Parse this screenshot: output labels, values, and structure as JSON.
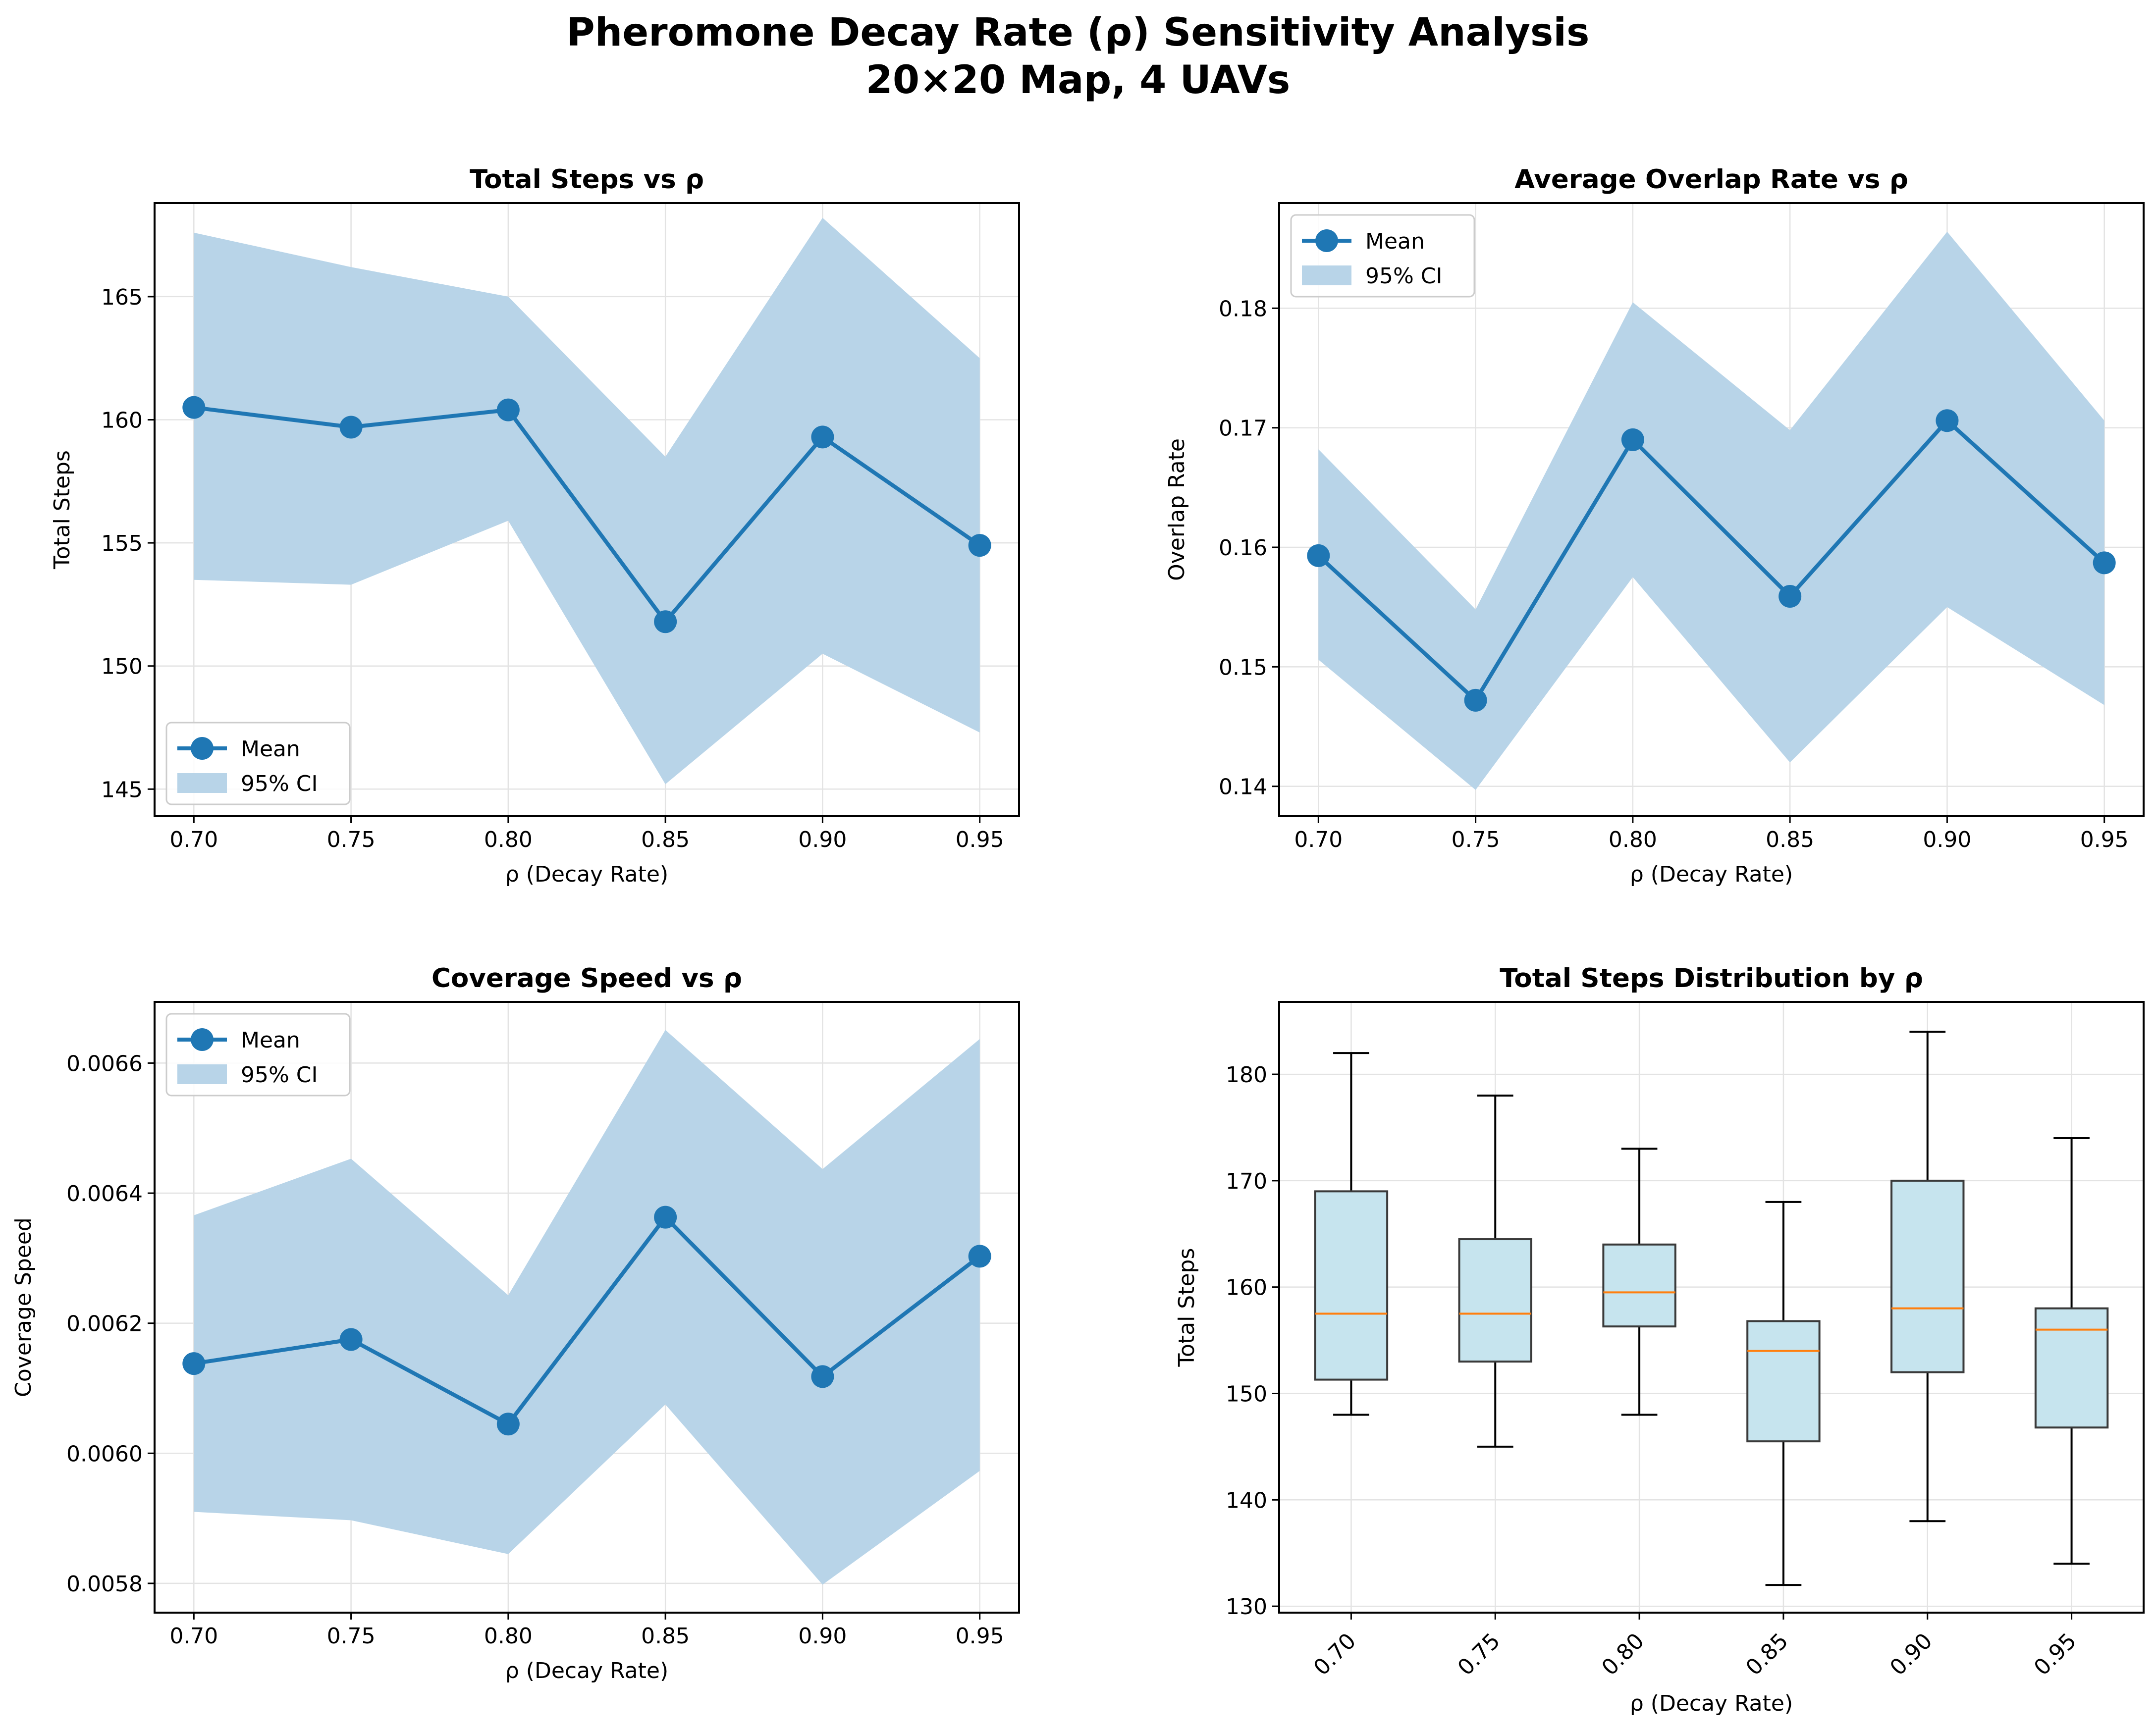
{
  "figure": {
    "title_line1": "Pheromone Decay Rate (ρ) Sensitivity Analysis",
    "title_line2": "20×20 Map, 4 UAVs"
  },
  "colors": {
    "line": "#1f77b4",
    "band": "#b8d4e8",
    "box_fill": "#c6e4ee",
    "median": "#ff7f0e",
    "grid": "#e3e3e3"
  },
  "legend": {
    "mean": "Mean",
    "ci": "95% CI"
  },
  "chart_data": [
    {
      "type": "line",
      "title": "Total Steps vs ρ",
      "xlabel": "ρ (Decay Rate)",
      "ylabel": "Total Steps",
      "x": [
        0.7,
        0.75,
        0.8,
        0.85,
        0.9,
        0.95
      ],
      "x_tick_labels": [
        "0.70",
        "0.75",
        "0.80",
        "0.85",
        "0.90",
        "0.95"
      ],
      "xlim": [
        0.6875,
        0.9625
      ],
      "ylim": [
        143.9,
        168.8
      ],
      "y_ticks": [
        145,
        150,
        155,
        160,
        165
      ],
      "y_tick_labels": [
        "145",
        "150",
        "155",
        "160",
        "165"
      ],
      "grid": true,
      "legend_position": "lower-left",
      "series": [
        {
          "name": "Mean",
          "values": [
            160.5,
            159.7,
            160.4,
            151.8,
            159.3,
            154.9
          ]
        },
        {
          "name": "95% CI",
          "lower": [
            153.5,
            153.3,
            155.9,
            145.2,
            150.5,
            147.3
          ],
          "upper": [
            167.6,
            166.2,
            165.0,
            158.5,
            168.2,
            162.5
          ]
        }
      ]
    },
    {
      "type": "line",
      "title": "Average Overlap Rate vs ρ",
      "xlabel": "ρ (Decay Rate)",
      "ylabel": "Overlap Rate",
      "x": [
        0.7,
        0.75,
        0.8,
        0.85,
        0.9,
        0.95
      ],
      "x_tick_labels": [
        "0.70",
        "0.75",
        "0.80",
        "0.85",
        "0.90",
        "0.95"
      ],
      "xlim": [
        0.6875,
        0.9625
      ],
      "ylim": [
        0.1375,
        0.1888
      ],
      "y_ticks": [
        0.14,
        0.15,
        0.16,
        0.17,
        0.18
      ],
      "y_tick_labels": [
        "0.14",
        "0.15",
        "0.16",
        "0.17",
        "0.18"
      ],
      "grid": true,
      "legend_position": "upper-left",
      "series": [
        {
          "name": "Mean",
          "values": [
            0.1593,
            0.1472,
            0.169,
            0.1559,
            0.1706,
            0.1587
          ]
        },
        {
          "name": "95% CI",
          "lower": [
            0.1506,
            0.1397,
            0.1575,
            0.142,
            0.155,
            0.1468
          ],
          "upper": [
            0.1682,
            0.1548,
            0.1805,
            0.1698,
            0.1864,
            0.1706
          ]
        }
      ]
    },
    {
      "type": "line",
      "title": "Coverage Speed vs ρ",
      "xlabel": "ρ (Decay Rate)",
      "ylabel": "Coverage Speed",
      "x": [
        0.7,
        0.75,
        0.8,
        0.85,
        0.9,
        0.95
      ],
      "x_tick_labels": [
        "0.70",
        "0.75",
        "0.80",
        "0.85",
        "0.90",
        "0.95"
      ],
      "xlim": [
        0.6875,
        0.9625
      ],
      "ylim": [
        0.005755,
        0.006694
      ],
      "y_ticks": [
        0.0058,
        0.006,
        0.0062,
        0.0064,
        0.0066
      ],
      "y_tick_labels": [
        "0.0058",
        "0.0060",
        "0.0062",
        "0.0064",
        "0.0066"
      ],
      "grid": true,
      "legend_position": "upper-left",
      "series": [
        {
          "name": "Mean",
          "values": [
            0.006138,
            0.006175,
            0.006045,
            0.006363,
            0.006118,
            0.006303
          ]
        },
        {
          "name": "95% CI",
          "lower": [
            0.00591,
            0.005897,
            0.005845,
            0.006075,
            0.005798,
            0.005973
          ],
          "upper": [
            0.006366,
            0.006453,
            0.006243,
            0.006651,
            0.006437,
            0.006637
          ]
        }
      ]
    },
    {
      "type": "box",
      "title": "Total Steps Distribution by ρ",
      "xlabel": "ρ (Decay Rate)",
      "ylabel": "Total Steps",
      "categories": [
        "0.70",
        "0.75",
        "0.80",
        "0.85",
        "0.90",
        "0.95"
      ],
      "ylim": [
        129.4,
        186.8
      ],
      "y_ticks": [
        130,
        140,
        150,
        160,
        170,
        180
      ],
      "y_tick_labels": [
        "130",
        "140",
        "150",
        "160",
        "170",
        "180"
      ],
      "grid": true,
      "x_tick_rotation_deg": 45,
      "boxes": [
        {
          "whisker_low": 148,
          "q1": 151.3,
          "median": 157.5,
          "q3": 169.0,
          "whisker_high": 182
        },
        {
          "whisker_low": 145,
          "q1": 153.0,
          "median": 157.5,
          "q3": 164.5,
          "whisker_high": 178
        },
        {
          "whisker_low": 148,
          "q1": 156.3,
          "median": 159.5,
          "q3": 164.0,
          "whisker_high": 173
        },
        {
          "whisker_low": 132,
          "q1": 145.5,
          "median": 154.0,
          "q3": 156.8,
          "whisker_high": 168
        },
        {
          "whisker_low": 138,
          "q1": 152.0,
          "median": 158.0,
          "q3": 170.0,
          "whisker_high": 184
        },
        {
          "whisker_low": 134,
          "q1": 146.8,
          "median": 156.0,
          "q3": 158.0,
          "whisker_high": 174
        }
      ]
    }
  ]
}
